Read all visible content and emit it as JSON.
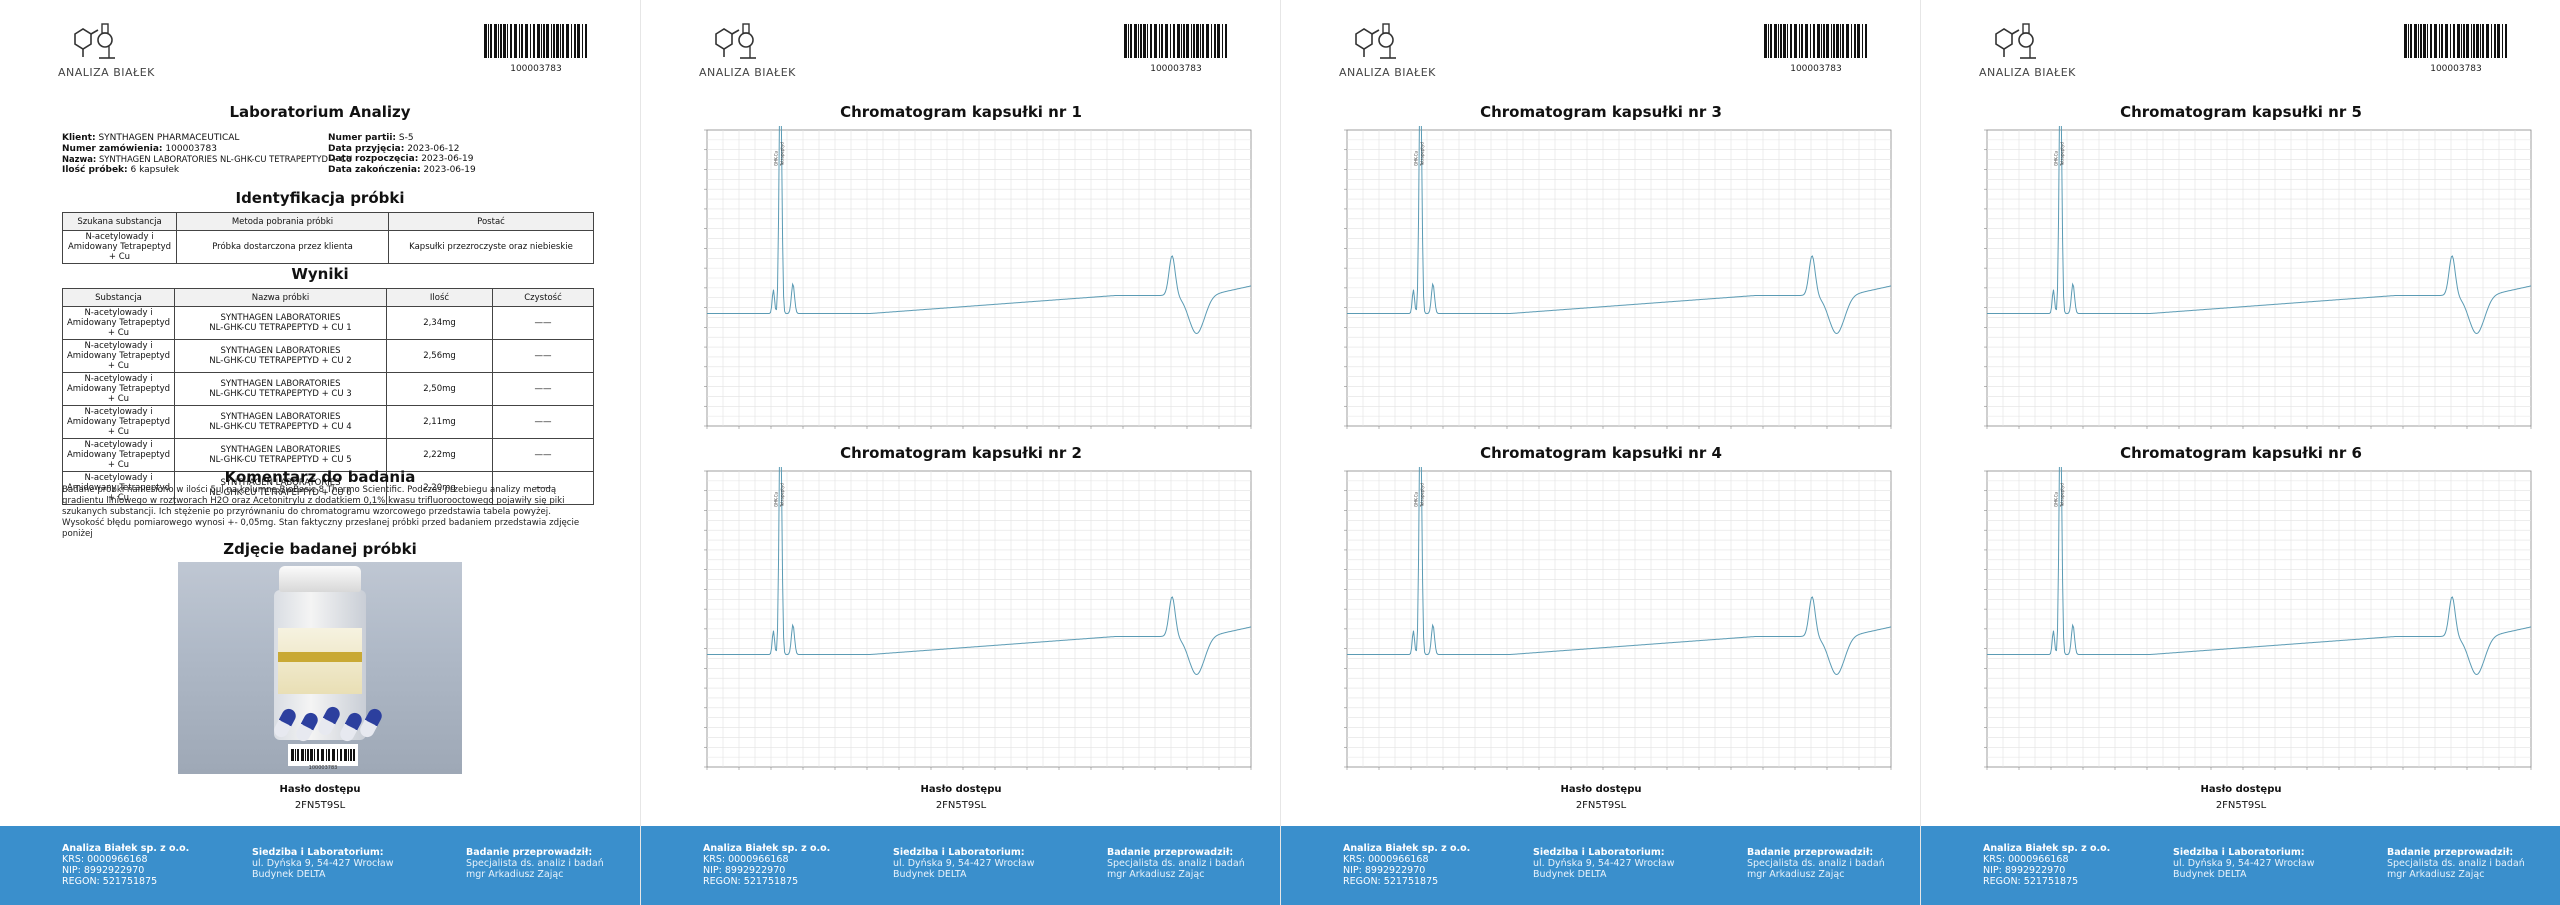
{
  "brand": {
    "logo_text": "ANALIZA BIAŁEK",
    "barcode_number": "100003783"
  },
  "report": {
    "title": "Laboratorium Analizy",
    "info_left": [
      {
        "label": "Klient:",
        "value": "SYNTHAGEN PHARMACEUTICAL"
      },
      {
        "label": "Numer zamówienia:",
        "value": "100003783"
      },
      {
        "label": "Nazwa:",
        "value": "SYNTHAGEN LABORATORIES NL-GHK-CU TETRAPEPTYD + CU"
      },
      {
        "label": "Ilość próbek:",
        "value": "6 kapsułek"
      }
    ],
    "info_right": [
      {
        "label": "Numer partii:",
        "value": "S-5"
      },
      {
        "label": "Data przyjęcia:",
        "value": "2023-06-12"
      },
      {
        "label": "Data rozpoczęcia:",
        "value": "2023-06-19"
      },
      {
        "label": "Data zakończenia:",
        "value": "2023-06-19"
      }
    ],
    "identification": {
      "heading": "Identyfikacja próbki",
      "headers": [
        "Szukana substancja",
        "Metoda pobrania próbki",
        "Postać"
      ],
      "row": [
        "N-acetylowady i Amidowany Tetrapeptyd + Cu",
        "Próbka dostarczona przez klienta",
        "Kapsułki przezroczyste oraz niebieskie"
      ]
    },
    "results": {
      "heading": "Wyniki",
      "headers": [
        "Substancja",
        "Nazwa próbki",
        "Ilość",
        "Czystość"
      ],
      "rows": [
        {
          "substance": "N-acetylowady i Amidowany Tetrapeptyd + Cu",
          "sample_a": "SYNTHAGEN LABORATORIES",
          "sample_b": "NL-GHK-CU TETRAPEPTYD + CU 1",
          "amount": "2,34mg",
          "purity": "——"
        },
        {
          "substance": "N-acetylowady i Amidowany Tetrapeptyd + Cu",
          "sample_a": "SYNTHAGEN LABORATORIES",
          "sample_b": "NL-GHK-CU TETRAPEPTYD + CU 2",
          "amount": "2,56mg",
          "purity": "——"
        },
        {
          "substance": "N-acetylowady i Amidowany Tetrapeptyd + Cu",
          "sample_a": "SYNTHAGEN LABORATORIES",
          "sample_b": "NL-GHK-CU TETRAPEPTYD + CU 3",
          "amount": "2,50mg",
          "purity": "——"
        },
        {
          "substance": "N-acetylowady i Amidowany Tetrapeptyd + Cu",
          "sample_a": "SYNTHAGEN LABORATORIES",
          "sample_b": "NL-GHK-CU TETRAPEPTYD + CU 4",
          "amount": "2,11mg",
          "purity": "——"
        },
        {
          "substance": "N-acetylowady i Amidowany Tetrapeptyd + Cu",
          "sample_a": "SYNTHAGEN LABORATORIES",
          "sample_b": "NL-GHK-CU TETRAPEPTYD + CU 5",
          "amount": "2,22mg",
          "purity": "——"
        },
        {
          "substance": "N-acetylowady i Amidowany Tetrapeptyd + Cu",
          "sample_a": "SYNTHAGEN LABORATORIES",
          "sample_b": "NL-GHK-CU TETRAPEPTYD + CU  6",
          "amount": "2,20mg",
          "purity": "——"
        }
      ]
    },
    "comment": {
      "heading": "Komentarz do badania",
      "text": "Badane próbki naniesiono w ilości 5ul na kolumnę BioBasic 8 Thermo Scientific. Podczas przebiegu analizy metodą gradientu liniowego w roztworach H2O oraz Acetonitrylu z dodatkiem 0,1% kwasu trifluorooctowego pojawiły się piki szukanych substancji. Ich stężenie po przyrównaniu do chromatogramu wzorcowego przedstawia tabela powyżej. Wysokość błędu pomiarowego wynosi +- 0,05mg. Stan faktyczny przesłanej próbki przed badaniem przedstawia zdjęcie poniżej"
    },
    "photo_heading": "Zdjęcie badanej próbki",
    "photo_barcode_number": "100003783"
  },
  "charts_pages": [
    {
      "top_title": "Chromatogram kapsułki nr 1",
      "bottom_title": "Chromatogram kapsułki nr 2"
    },
    {
      "top_title": "Chromatogram kapsułki nr 3",
      "bottom_title": "Chromatogram kapsułki nr 4"
    },
    {
      "top_title": "Chromatogram kapsułki nr 5",
      "bottom_title": "Chromatogram kapsułki nr 6"
    }
  ],
  "access": {
    "label": "Hasło dostępu",
    "value": "2FN5T9SL"
  },
  "footer": {
    "company": "Analiza Białek sp. z o.o.",
    "krs": "KRS: 0000966168",
    "nip": "NIP: 8992922970",
    "regon": "REGON: 521751875",
    "hq_title": "Siedziba i Laboratorium:",
    "hq_line1": "ul. Dyńska 9, 54-427 Wrocław",
    "hq_line2": "Budynek DELTA",
    "performed_title": "Badanie przeprowadził:",
    "performed_line1": "Specjalista ds. analiz i badań",
    "performed_line2": "mgr Arkadiusz Zając"
  },
  "colors": {
    "footer_bg": "#3a8fcc",
    "trace": "#5b9bb4"
  },
  "chart_data": [
    {
      "type": "line",
      "title": "Chromatogram kapsułki nr 1",
      "peak_labels": [
        "GHK-Cu",
        "Tetrapeptyd"
      ]
    },
    {
      "type": "line",
      "title": "Chromatogram kapsułki nr 2",
      "peak_labels": [
        "GHK-Cu",
        "Tetrapeptyd"
      ]
    },
    {
      "type": "line",
      "title": "Chromatogram kapsułki nr 3",
      "peak_labels": [
        "GHK-Cu",
        "Tetrapeptyd"
      ]
    },
    {
      "type": "line",
      "title": "Chromatogram kapsułki nr 4",
      "peak_labels": [
        "GHK-Cu",
        "Tetrapeptyd"
      ]
    },
    {
      "type": "line",
      "title": "Chromatogram kapsułki nr 5",
      "peak_labels": [
        "GHK-Cu",
        "Tetrapeptyd"
      ]
    },
    {
      "type": "line",
      "title": "Chromatogram kapsułki nr 6",
      "peak_labels": [
        "GHK-Cu",
        "Tetrapeptyd"
      ]
    }
  ]
}
